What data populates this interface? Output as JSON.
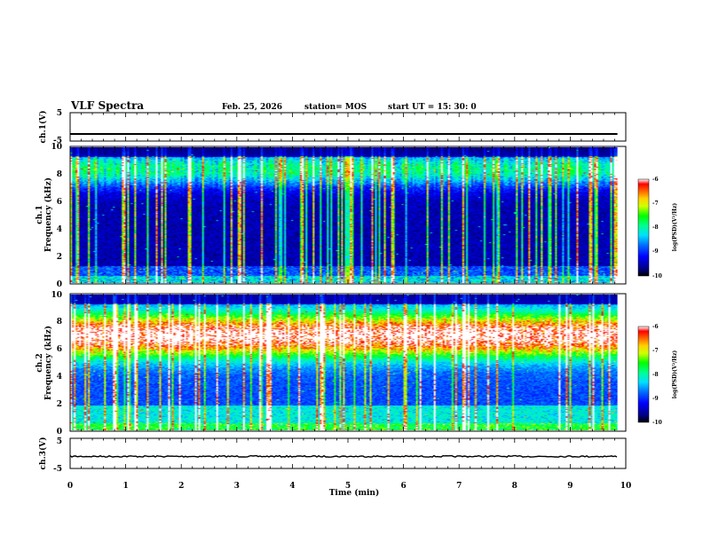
{
  "header": {
    "title": "VLF Spectra",
    "date": "Feb. 25, 2026",
    "station": "station= MOS",
    "start": "start  UT =   15: 30: 0"
  },
  "chart_data": {
    "type": "heatmap",
    "xlabel": "Time  (min)",
    "xlim": [
      0,
      10
    ],
    "x_ticks": [
      "0",
      "1",
      "2",
      "3",
      "4",
      "5",
      "6",
      "7",
      "8",
      "9",
      "10"
    ],
    "data_end_min": 9.85,
    "panels": [
      {
        "name": "ch1-voltage",
        "kind": "line",
        "ylabel": "ch.1(V)",
        "ylim": [
          -5,
          5
        ],
        "y_ticks": [
          "5",
          "-5"
        ],
        "baseline_v": -2.5
      },
      {
        "name": "ch1-spectrogram",
        "kind": "spectrogram",
        "ylabel_top": "ch.1",
        "ylabel_bottom": "Frequency (kHz)",
        "ylim": [
          0,
          10
        ],
        "y_ticks": [
          "0",
          "2",
          "4",
          "6",
          "8",
          "10"
        ],
        "colorbar": {
          "label": "log(PSD)(V²/Hz)",
          "range": [
            -10,
            -6
          ],
          "ticks": [
            "-6",
            "-7",
            "-8",
            "-9",
            "-10"
          ]
        },
        "band_center_khz": 8.4,
        "band_width_khz": 1.3,
        "band_level": 0.42,
        "background_level": 0.06,
        "low_band_khz": [
          0,
          1.2
        ],
        "low_band_level": 0.3,
        "impulse_count": 90,
        "seed": 11
      },
      {
        "name": "ch2-spectrogram",
        "kind": "spectrogram",
        "ylabel_top": "ch.2",
        "ylabel_bottom": "Frequency (kHz)",
        "ylim": [
          0,
          10
        ],
        "y_ticks": [
          "0",
          "2",
          "4",
          "6",
          "8",
          "10"
        ],
        "colorbar": {
          "label": "log(PSD)(V²/Hz)",
          "range": [
            -10,
            -6
          ],
          "ticks": [
            "-6",
            "-7",
            "-8",
            "-9",
            "-10"
          ]
        },
        "band_center_khz": 7.0,
        "band_width_khz": 1.6,
        "band_level": 0.82,
        "background_level": 0.22,
        "low_band_khz": [
          0,
          1.8
        ],
        "low_band_level": 0.3,
        "impulse_count": 70,
        "seed": 29
      },
      {
        "name": "ch3-voltage",
        "kind": "line",
        "ylabel": "ch.3(V)",
        "ylim": [
          -5,
          5
        ],
        "y_ticks": [
          "5",
          "-5"
        ],
        "baseline_v": -1.0
      }
    ]
  }
}
